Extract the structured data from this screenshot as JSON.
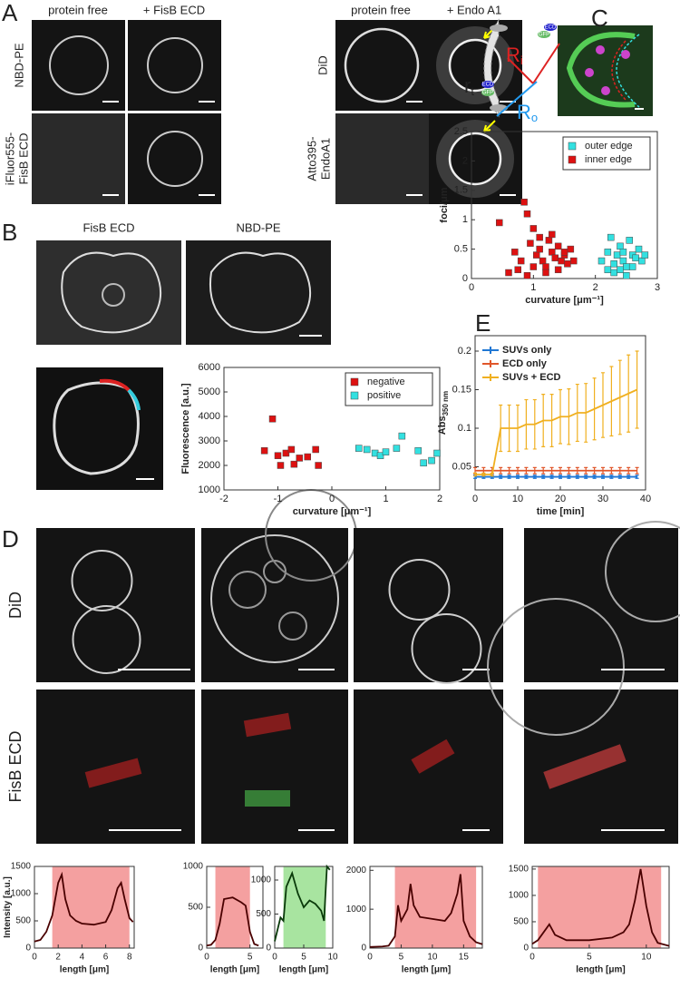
{
  "panel_labels": [
    "A",
    "B",
    "C",
    "D",
    "E"
  ],
  "panel_A": {
    "columns": [
      "protein free",
      "+ FisB ECD",
      "protein free",
      "+ Endo A1"
    ],
    "rows": [
      [
        "NBD-PE"
      ],
      [
        "iFluor555-",
        "FisB ECD"
      ],
      [
        "DiD"
      ],
      [
        "Atto395-",
        "EndoA1"
      ]
    ]
  },
  "panel_B": {
    "image_labels": [
      "FisB ECD",
      "NBD-PE"
    ]
  },
  "panel_C": {
    "diagram_labels": [
      {
        "main": "R",
        "sub": "i"
      },
      {
        "main": "r",
        "sub": "t"
      },
      {
        "main": "R",
        "sub": "o"
      }
    ],
    "protein_labels": [
      "GFP",
      "ECD"
    ]
  },
  "panel_D": {
    "rows": [
      "DiD",
      "FisB ECD"
    ]
  },
  "chart_data": [
    {
      "type": "scatter",
      "xlabel": "curvature [μm⁻¹]",
      "ylabel": "Fluorescence [a.u.]",
      "xlim": [
        -2,
        2
      ],
      "xticks": [
        -2,
        -1,
        0,
        1,
        2
      ],
      "ylim": [
        1000,
        6000
      ],
      "yticks": [
        1000,
        2000,
        3000,
        4000,
        5000,
        6000
      ],
      "legend": "upper right",
      "series": [
        {
          "name": "negative",
          "color": "#dd1111",
          "x": [
            -1.1,
            -1.25,
            -1.0,
            -0.85,
            -0.75,
            -0.6,
            -0.45,
            -0.3,
            -0.95,
            -0.7,
            -0.25
          ],
          "values": [
            3900,
            2600,
            2400,
            2500,
            2650,
            2300,
            2350,
            2650,
            2000,
            2050,
            2000
          ]
        },
        {
          "name": "positive",
          "color": "#33e0e0",
          "x": [
            0.5,
            0.65,
            0.8,
            0.9,
            1.0,
            1.2,
            1.3,
            1.6,
            1.7,
            1.85,
            1.95
          ],
          "values": [
            2700,
            2650,
            2500,
            2400,
            2550,
            2700,
            3200,
            2600,
            2100,
            2200,
            2500
          ]
        }
      ]
    },
    {
      "type": "scatter",
      "xlabel": "curvature [μm⁻¹]",
      "ylabel": "foci/μm",
      "xlim": [
        0,
        3
      ],
      "xticks": [
        0,
        1,
        2,
        3
      ],
      "ylim": [
        0,
        2.5
      ],
      "yticks": [
        0,
        0.5,
        1,
        1.5,
        2,
        2.5
      ],
      "legend": "upper right",
      "series": [
        {
          "name": "outer edge",
          "color": "#33e0e0",
          "x": [
            2.1,
            2.2,
            2.25,
            2.3,
            2.35,
            2.4,
            2.45,
            2.5,
            2.55,
            2.6,
            2.65,
            2.7,
            2.75,
            2.8,
            2.3,
            2.4,
            2.5,
            2.6,
            2.2,
            2.45
          ],
          "values": [
            0.3,
            0.45,
            0.7,
            0.25,
            0.4,
            0.55,
            0.3,
            0.2,
            0.65,
            0.4,
            0.35,
            0.5,
            0.3,
            0.4,
            0.1,
            0.15,
            0.05,
            0.2,
            0.15,
            0.45
          ]
        },
        {
          "name": "inner edge",
          "color": "#dd1111",
          "x": [
            0.45,
            0.6,
            0.7,
            0.8,
            0.85,
            0.9,
            0.95,
            1.0,
            1.05,
            1.1,
            1.15,
            1.2,
            1.25,
            1.3,
            1.35,
            1.4,
            1.45,
            1.5,
            1.55,
            1.6,
            1.65,
            0.75,
            1.0,
            1.2,
            1.4,
            0.9,
            1.1,
            1.3,
            1.5
          ],
          "values": [
            0.95,
            0.1,
            0.45,
            0.3,
            1.3,
            1.1,
            0.6,
            0.85,
            0.4,
            0.5,
            0.3,
            0.2,
            0.65,
            0.45,
            0.35,
            0.55,
            0.3,
            0.4,
            0.25,
            0.5,
            0.3,
            0.15,
            0.2,
            0.1,
            0.15,
            0.05,
            0.7,
            0.75,
            0.45
          ]
        }
      ]
    },
    {
      "type": "line",
      "xlabel": "time [min]",
      "ylabel": "Abs",
      "ylabel_sub": "350 nm",
      "xlim": [
        0,
        40
      ],
      "xticks": [
        0,
        10,
        20,
        30,
        40
      ],
      "ylim": [
        0.02,
        0.22
      ],
      "yticks": [
        0.05,
        0.1,
        0.15,
        0.2
      ],
      "legend": "upper left",
      "x": [
        0,
        2,
        4,
        6,
        8,
        10,
        12,
        14,
        16,
        18,
        20,
        22,
        24,
        26,
        28,
        30,
        32,
        34,
        36,
        38
      ],
      "series": [
        {
          "name": "SUVs only",
          "color": "#1f77d4",
          "values": [
            0.037,
            0.037,
            0.037,
            0.037,
            0.037,
            0.037,
            0.037,
            0.037,
            0.037,
            0.037,
            0.037,
            0.037,
            0.037,
            0.037,
            0.037,
            0.037,
            0.037,
            0.037,
            0.037,
            0.037
          ],
          "errors": [
            0.002,
            0.002,
            0.002,
            0.002,
            0.002,
            0.002,
            0.002,
            0.002,
            0.002,
            0.002,
            0.002,
            0.002,
            0.002,
            0.002,
            0.002,
            0.002,
            0.002,
            0.002,
            0.002,
            0.002
          ]
        },
        {
          "name": "ECD only",
          "color": "#e0562a",
          "values": [
            0.045,
            0.045,
            0.045,
            0.045,
            0.045,
            0.045,
            0.045,
            0.045,
            0.045,
            0.045,
            0.045,
            0.045,
            0.045,
            0.045,
            0.045,
            0.045,
            0.045,
            0.045,
            0.045,
            0.045
          ],
          "errors": [
            0.004,
            0.004,
            0.004,
            0.004,
            0.004,
            0.004,
            0.004,
            0.004,
            0.004,
            0.004,
            0.004,
            0.004,
            0.004,
            0.004,
            0.004,
            0.004,
            0.004,
            0.004,
            0.004,
            0.004
          ]
        },
        {
          "name": "SUVs + ECD",
          "color": "#f0b020",
          "values": [
            0.04,
            0.04,
            0.04,
            0.1,
            0.1,
            0.1,
            0.105,
            0.105,
            0.11,
            0.11,
            0.115,
            0.115,
            0.12,
            0.12,
            0.125,
            0.13,
            0.135,
            0.14,
            0.145,
            0.15
          ],
          "errors": [
            0.002,
            0.002,
            0.002,
            0.03,
            0.03,
            0.03,
            0.032,
            0.032,
            0.034,
            0.034,
            0.035,
            0.036,
            0.037,
            0.038,
            0.04,
            0.042,
            0.045,
            0.048,
            0.05,
            0.05
          ]
        }
      ]
    },
    {
      "type": "line",
      "xlabel": "length [μm]",
      "ylabel": "Intensity [a.u.]",
      "xlim": [
        0,
        8.4
      ],
      "xticks": [
        0,
        2,
        4,
        6,
        8
      ],
      "ylim": [
        0,
        1500
      ],
      "yticks": [
        0,
        500,
        1000,
        1500
      ],
      "highlight": [
        1.5,
        8
      ],
      "highlight_color": "#f4a0a0",
      "x": [
        0,
        0.5,
        1,
        1.5,
        2,
        2.3,
        2.6,
        3,
        3.5,
        4,
        5,
        6,
        6.5,
        7,
        7.3,
        7.6,
        8,
        8.3
      ],
      "series": [
        {
          "color": "#4a0000",
          "values": [
            120,
            150,
            300,
            600,
            1200,
            1350,
            900,
            600,
            500,
            450,
            430,
            480,
            700,
            1100,
            1200,
            900,
            550,
            480
          ]
        }
      ]
    },
    {
      "type": "line",
      "xlabel": "length [μm]",
      "xlim": [
        0,
        6.5
      ],
      "xticks": [
        0,
        5
      ],
      "ylim": [
        0,
        1000
      ],
      "yticks": [
        0,
        500,
        1000
      ],
      "highlight": [
        1,
        5
      ],
      "highlight_color": "#f4a0a0",
      "x": [
        0,
        0.5,
        1,
        1.5,
        2,
        3,
        4,
        4.5,
        5,
        5.5,
        6
      ],
      "series": [
        {
          "color": "#4a0000",
          "values": [
            30,
            40,
            100,
            300,
            600,
            620,
            560,
            520,
            200,
            50,
            30
          ]
        }
      ]
    },
    {
      "type": "line",
      "xlabel": "length [μm]",
      "xlim": [
        0,
        10
      ],
      "xticks": [
        0,
        5,
        10
      ],
      "ylim": [
        0,
        1200
      ],
      "yticks": [
        0,
        500,
        1000
      ],
      "highlight": [
        1.5,
        8.8
      ],
      "highlight_color": "#a8e4a0",
      "x": [
        0,
        1,
        1.5,
        2,
        3,
        4,
        5,
        6,
        7,
        8,
        8.5,
        9,
        9.5
      ],
      "series": [
        {
          "color": "#0a3a0a",
          "values": [
            100,
            450,
            400,
            900,
            1100,
            800,
            600,
            700,
            650,
            550,
            400,
            1200,
            1150
          ]
        }
      ]
    },
    {
      "type": "line",
      "xlabel": "length [μm]",
      "xlim": [
        0,
        18
      ],
      "xticks": [
        0,
        5,
        10,
        15
      ],
      "ylim": [
        0,
        2100
      ],
      "yticks": [
        0,
        1000,
        2000
      ],
      "highlight": [
        4,
        17
      ],
      "highlight_color": "#f4a0a0",
      "x": [
        0,
        2,
        3,
        4,
        4.5,
        5,
        6,
        6.5,
        7,
        8,
        10,
        12,
        13,
        14,
        14.5,
        15,
        16,
        17,
        18
      ],
      "series": [
        {
          "color": "#4a0000",
          "values": [
            30,
            40,
            60,
            300,
            1100,
            700,
            1000,
            1650,
            1100,
            800,
            750,
            700,
            900,
            1400,
            1900,
            700,
            300,
            150,
            100
          ]
        }
      ]
    },
    {
      "type": "line",
      "xlabel": "length [μm]",
      "xlim": [
        0,
        12
      ],
      "xticks": [
        0,
        5,
        10
      ],
      "ylim": [
        0,
        1550
      ],
      "yticks": [
        0,
        500,
        1000,
        1500
      ],
      "highlight": [
        0.5,
        11.3
      ],
      "highlight_color": "#f4a0a0",
      "x": [
        0,
        0.5,
        1,
        1.5,
        2,
        3,
        5,
        7,
        8,
        8.5,
        9,
        9.5,
        10,
        10.5,
        11,
        12
      ],
      "series": [
        {
          "color": "#4a0000",
          "values": [
            80,
            150,
            300,
            450,
            250,
            150,
            150,
            200,
            300,
            450,
            900,
            1500,
            800,
            300,
            100,
            40
          ]
        }
      ]
    }
  ]
}
